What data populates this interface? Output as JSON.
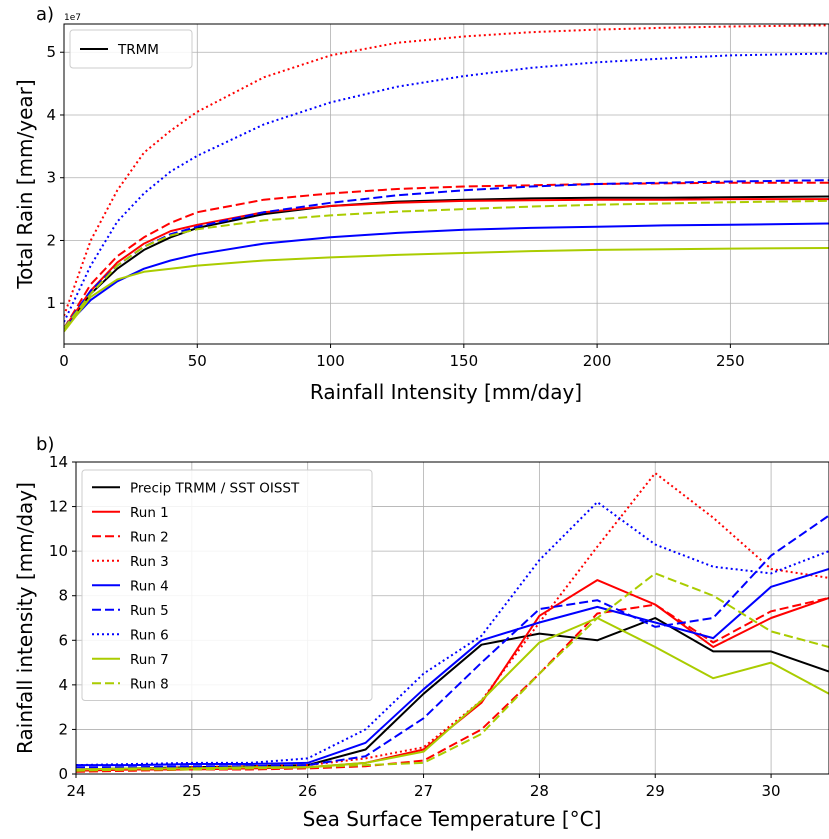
{
  "chart_data": [
    {
      "type": "line",
      "panel_label": "a)",
      "xlabel": "Rainfall Intensity [mm/day]",
      "ylabel": "Total Rain [mm/year]",
      "y_offset_text": "1e7",
      "xlim": [
        0,
        287
      ],
      "ylim": [
        0.35,
        5.45
      ],
      "x_ticks": [
        0,
        50,
        100,
        150,
        200,
        250
      ],
      "x_tick_labels": [
        "0",
        "50",
        "100",
        "150",
        "200",
        "250"
      ],
      "y_ticks": [
        1,
        2,
        3,
        4,
        5
      ],
      "y_tick_labels": [
        "1",
        "2",
        "3",
        "4",
        "5"
      ],
      "grid": true,
      "legend_position": "top-left",
      "x": [
        0,
        10,
        20,
        30,
        40,
        50,
        75,
        100,
        125,
        150,
        175,
        200,
        225,
        250,
        287
      ],
      "series": [
        {
          "name": "TRMM",
          "color": "#000000",
          "dash": "solid",
          "in_legend": true,
          "values": [
            0.6,
            1.15,
            1.55,
            1.85,
            2.05,
            2.2,
            2.42,
            2.55,
            2.62,
            2.65,
            2.67,
            2.68,
            2.68,
            2.69,
            2.7
          ]
        },
        {
          "name": "",
          "color": "#ff0000",
          "dash": "solid",
          "in_legend": false,
          "values": [
            0.6,
            1.2,
            1.65,
            1.95,
            2.15,
            2.25,
            2.45,
            2.55,
            2.6,
            2.63,
            2.64,
            2.65,
            2.65,
            2.66,
            2.66
          ]
        },
        {
          "name": "",
          "color": "#ff0000",
          "dash": "dashed",
          "in_legend": false,
          "values": [
            0.6,
            1.3,
            1.75,
            2.05,
            2.28,
            2.45,
            2.65,
            2.75,
            2.82,
            2.86,
            2.88,
            2.9,
            2.91,
            2.92,
            2.92
          ]
        },
        {
          "name": "",
          "color": "#ff0000",
          "dash": "dotted",
          "in_legend": false,
          "values": [
            0.8,
            2.0,
            2.8,
            3.4,
            3.75,
            4.05,
            4.6,
            4.95,
            5.15,
            5.25,
            5.32,
            5.36,
            5.39,
            5.41,
            5.43
          ]
        },
        {
          "name": "",
          "color": "#0000ff",
          "dash": "solid",
          "in_legend": false,
          "values": [
            0.6,
            1.05,
            1.35,
            1.55,
            1.68,
            1.78,
            1.95,
            2.05,
            2.12,
            2.17,
            2.2,
            2.22,
            2.24,
            2.25,
            2.27
          ]
        },
        {
          "name": "",
          "color": "#0000ff",
          "dash": "dashed",
          "in_legend": false,
          "values": [
            0.6,
            1.2,
            1.6,
            1.9,
            2.1,
            2.22,
            2.45,
            2.6,
            2.72,
            2.8,
            2.86,
            2.9,
            2.92,
            2.94,
            2.96
          ]
        },
        {
          "name": "",
          "color": "#0000ff",
          "dash": "dotted",
          "in_legend": false,
          "values": [
            0.7,
            1.6,
            2.3,
            2.75,
            3.1,
            3.35,
            3.85,
            4.2,
            4.45,
            4.62,
            4.75,
            4.84,
            4.9,
            4.95,
            4.98
          ]
        },
        {
          "name": "",
          "color": "#aacc00",
          "dash": "solid",
          "in_legend": false,
          "values": [
            0.55,
            1.1,
            1.38,
            1.5,
            1.55,
            1.6,
            1.68,
            1.73,
            1.77,
            1.8,
            1.83,
            1.85,
            1.86,
            1.87,
            1.88
          ]
        },
        {
          "name": "",
          "color": "#aacc00",
          "dash": "dashed",
          "in_legend": false,
          "values": [
            0.6,
            1.15,
            1.6,
            1.9,
            2.08,
            2.18,
            2.32,
            2.4,
            2.46,
            2.5,
            2.54,
            2.57,
            2.59,
            2.61,
            2.63
          ]
        }
      ]
    },
    {
      "type": "line",
      "panel_label": "b)",
      "xlabel": "Sea Surface Temperature [°C]",
      "ylabel": "Rainfall intensity [mm/day]",
      "xlim": [
        24,
        30.5
      ],
      "ylim": [
        0,
        14
      ],
      "x_ticks": [
        24,
        25,
        26,
        27,
        28,
        29,
        30
      ],
      "x_tick_labels": [
        "24",
        "25",
        "26",
        "27",
        "28",
        "29",
        "30"
      ],
      "y_ticks": [
        0,
        2,
        4,
        6,
        8,
        10,
        12,
        14
      ],
      "y_tick_labels": [
        "0",
        "2",
        "4",
        "6",
        "8",
        "10",
        "12",
        "14"
      ],
      "grid": true,
      "legend_position": "top-left",
      "x": [
        24,
        24.5,
        25,
        25.5,
        26,
        26.5,
        27,
        27.5,
        28,
        28.5,
        29,
        29.5,
        30,
        30.5
      ],
      "series": [
        {
          "name": "Precip TRMM / SST OISST",
          "color": "#000000",
          "dash": "solid",
          "values": [
            0.2,
            0.25,
            0.3,
            0.35,
            0.4,
            1.1,
            3.6,
            5.8,
            6.3,
            6.0,
            7.0,
            5.5,
            5.5,
            4.6
          ]
        },
        {
          "name": "Run 1",
          "color": "#ff0000",
          "dash": "solid",
          "values": [
            0.15,
            0.2,
            0.2,
            0.25,
            0.3,
            0.5,
            1.1,
            3.2,
            7.1,
            8.7,
            7.6,
            5.7,
            7.0,
            7.9
          ]
        },
        {
          "name": "Run 2",
          "color": "#ff0000",
          "dash": "dashed",
          "values": [
            0.1,
            0.15,
            0.2,
            0.2,
            0.25,
            0.35,
            0.6,
            2.0,
            4.5,
            7.2,
            7.6,
            5.9,
            7.3,
            7.9
          ]
        },
        {
          "name": "Run 3",
          "color": "#ff0000",
          "dash": "dotted",
          "values": [
            0.2,
            0.25,
            0.3,
            0.35,
            0.4,
            0.7,
            1.2,
            3.3,
            6.8,
            10.2,
            13.5,
            11.5,
            9.2,
            8.8
          ]
        },
        {
          "name": "Run 4",
          "color": "#0000ff",
          "dash": "solid",
          "values": [
            0.4,
            0.4,
            0.45,
            0.45,
            0.5,
            1.4,
            3.8,
            6.0,
            6.8,
            7.5,
            6.8,
            6.1,
            8.4,
            9.2
          ]
        },
        {
          "name": "Run 5",
          "color": "#0000ff",
          "dash": "dashed",
          "values": [
            0.3,
            0.3,
            0.35,
            0.35,
            0.4,
            0.8,
            2.5,
            5.0,
            7.4,
            7.8,
            6.6,
            7.0,
            9.8,
            11.6
          ]
        },
        {
          "name": "Run 6",
          "color": "#0000ff",
          "dash": "dotted",
          "values": [
            0.4,
            0.45,
            0.5,
            0.5,
            0.7,
            2.0,
            4.5,
            6.2,
            9.6,
            12.2,
            10.3,
            9.3,
            9.0,
            10.0
          ]
        },
        {
          "name": "Run 7",
          "color": "#aacc00",
          "dash": "solid",
          "values": [
            0.2,
            0.25,
            0.25,
            0.3,
            0.3,
            0.5,
            1.0,
            3.3,
            5.9,
            7.0,
            5.7,
            4.3,
            5.0,
            3.6
          ]
        },
        {
          "name": "Run 8",
          "color": "#aacc00",
          "dash": "dashed",
          "values": [
            0.15,
            0.2,
            0.2,
            0.25,
            0.3,
            0.4,
            0.5,
            1.8,
            4.5,
            7.0,
            9.0,
            8.0,
            6.4,
            5.7
          ]
        }
      ]
    }
  ]
}
